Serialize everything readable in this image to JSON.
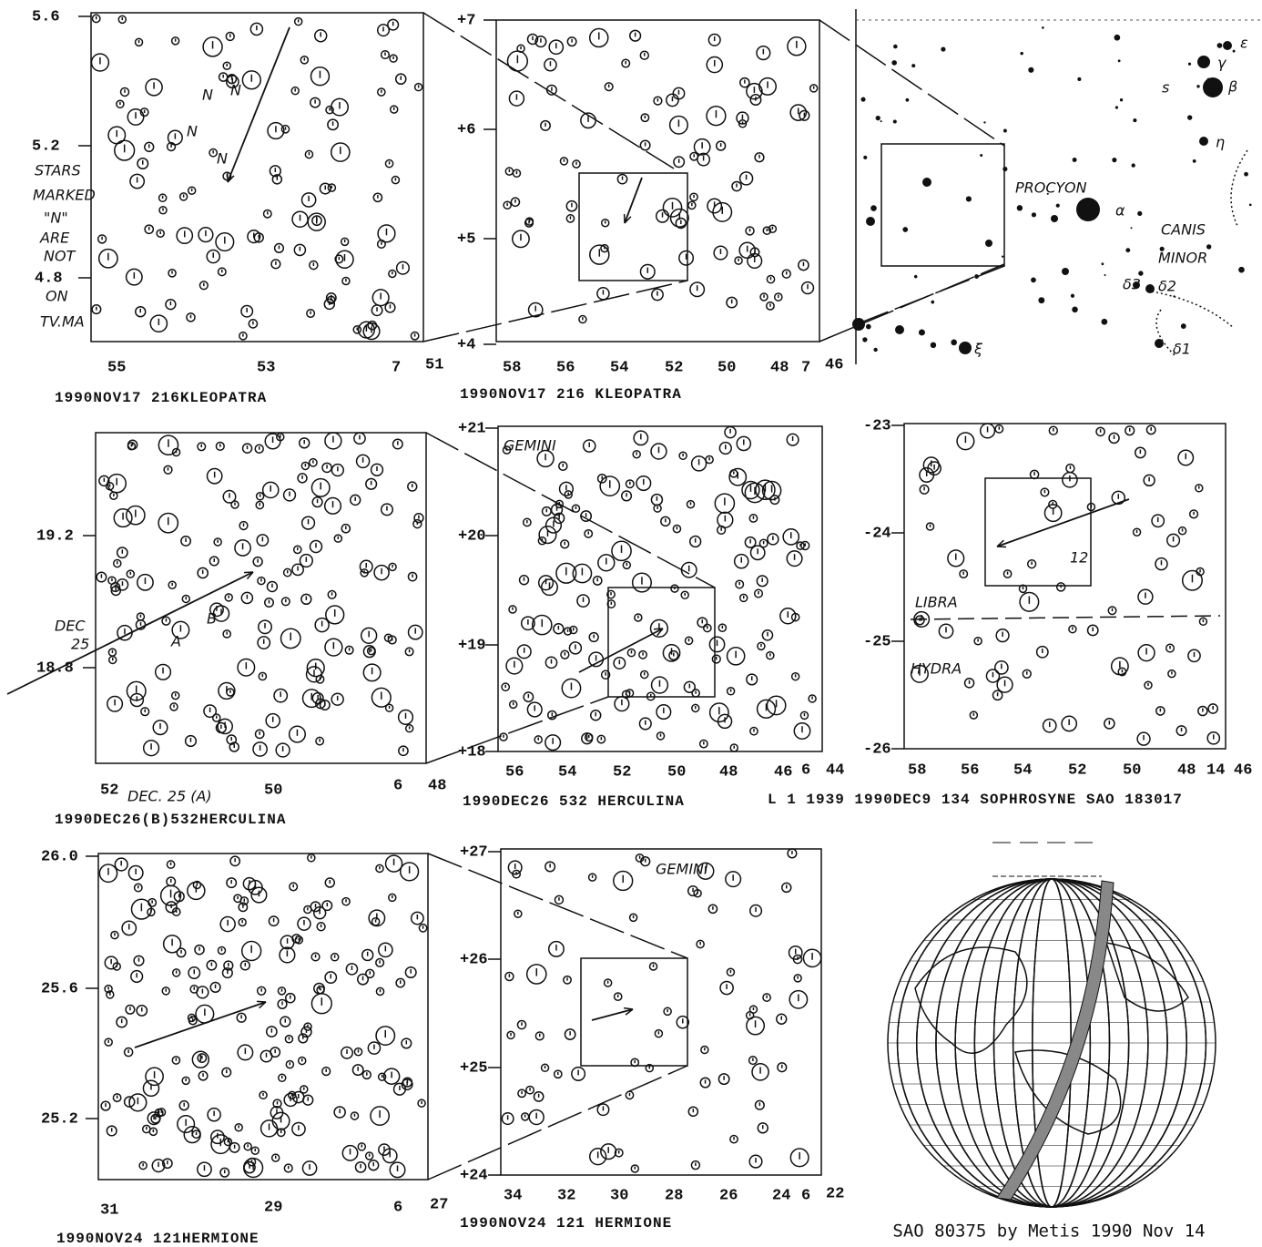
{
  "panels": [
    {
      "y_labels": [
        "5.6",
        "5.2",
        "4.8"
      ],
      "x_labels": [
        "55",
        "53",
        "7",
        "51"
      ],
      "annotations": [
        "STARS",
        "MARKED",
        "\"N\"",
        "ARE",
        "NOT",
        "ON",
        "TV.MA",
        "N",
        "N",
        "N",
        "N"
      ],
      "caption": "1990NOV17  216KLEOPATRA"
    },
    {
      "y_labels": [
        "+7",
        "+6",
        "+5",
        "+4"
      ],
      "x_labels": [
        "58",
        "56",
        "54",
        "52",
        "50",
        "48",
        "7",
        "46"
      ],
      "annotations": [],
      "caption": "1990NOV17  216 KLEOPATRA"
    },
    {
      "y_labels": [],
      "x_labels": [],
      "annotations": [
        "PROCYON",
        "α",
        "CANIS",
        "MINOR",
        "ε",
        "γ",
        "β",
        "η",
        "ξ",
        "δ3",
        "δ2",
        "δ1",
        "s"
      ]
    },
    {
      "y_labels": [
        "19.2",
        "18.8"
      ],
      "x_labels": [
        "52",
        "50",
        "6",
        "48"
      ],
      "annotations": [
        "DEC",
        "25",
        "A",
        "B",
        "DEC. 25 (A)"
      ],
      "caption": "1990DEC26(B)532HERCULINA"
    },
    {
      "y_labels": [
        "+21",
        "+20",
        "+19",
        "+18"
      ],
      "x_labels": [
        "56",
        "54",
        "52",
        "50",
        "48",
        "46",
        "6",
        "44"
      ],
      "annotations": [
        "GEMINI"
      ],
      "caption": "1990DEC26  532 HERCULINA"
    },
    {
      "y_labels": [
        "-23",
        "-24",
        "-25",
        "-26"
      ],
      "x_labels": [
        "58",
        "56",
        "54",
        "52",
        "50",
        "48",
        "14",
        "46"
      ],
      "annotations": [
        "LIBRA",
        "HYDRA",
        "12"
      ],
      "caption": "L  1 1939  1990DEC9    134 SOPHROSYNE SAO 183017"
    },
    {
      "y_labels": [
        "26.0",
        "25.6",
        "25.2"
      ],
      "x_labels": [
        "31",
        "29",
        "6",
        "27"
      ],
      "annotations": [],
      "caption": "1990NOV24  121HERMIONE"
    },
    {
      "y_labels": [
        "+27",
        "+26",
        "+25",
        "+24"
      ],
      "x_labels": [
        "34",
        "32",
        "30",
        "28",
        "26",
        "24",
        "6",
        "22"
      ],
      "annotations": [
        "GEMINI"
      ],
      "caption": "1990NOV24  121 HERMIONE"
    },
    {
      "y_labels": [],
      "x_labels": [],
      "annotations": [],
      "caption": "SAO 80375 by Metis 1990 Nov 14"
    }
  ]
}
